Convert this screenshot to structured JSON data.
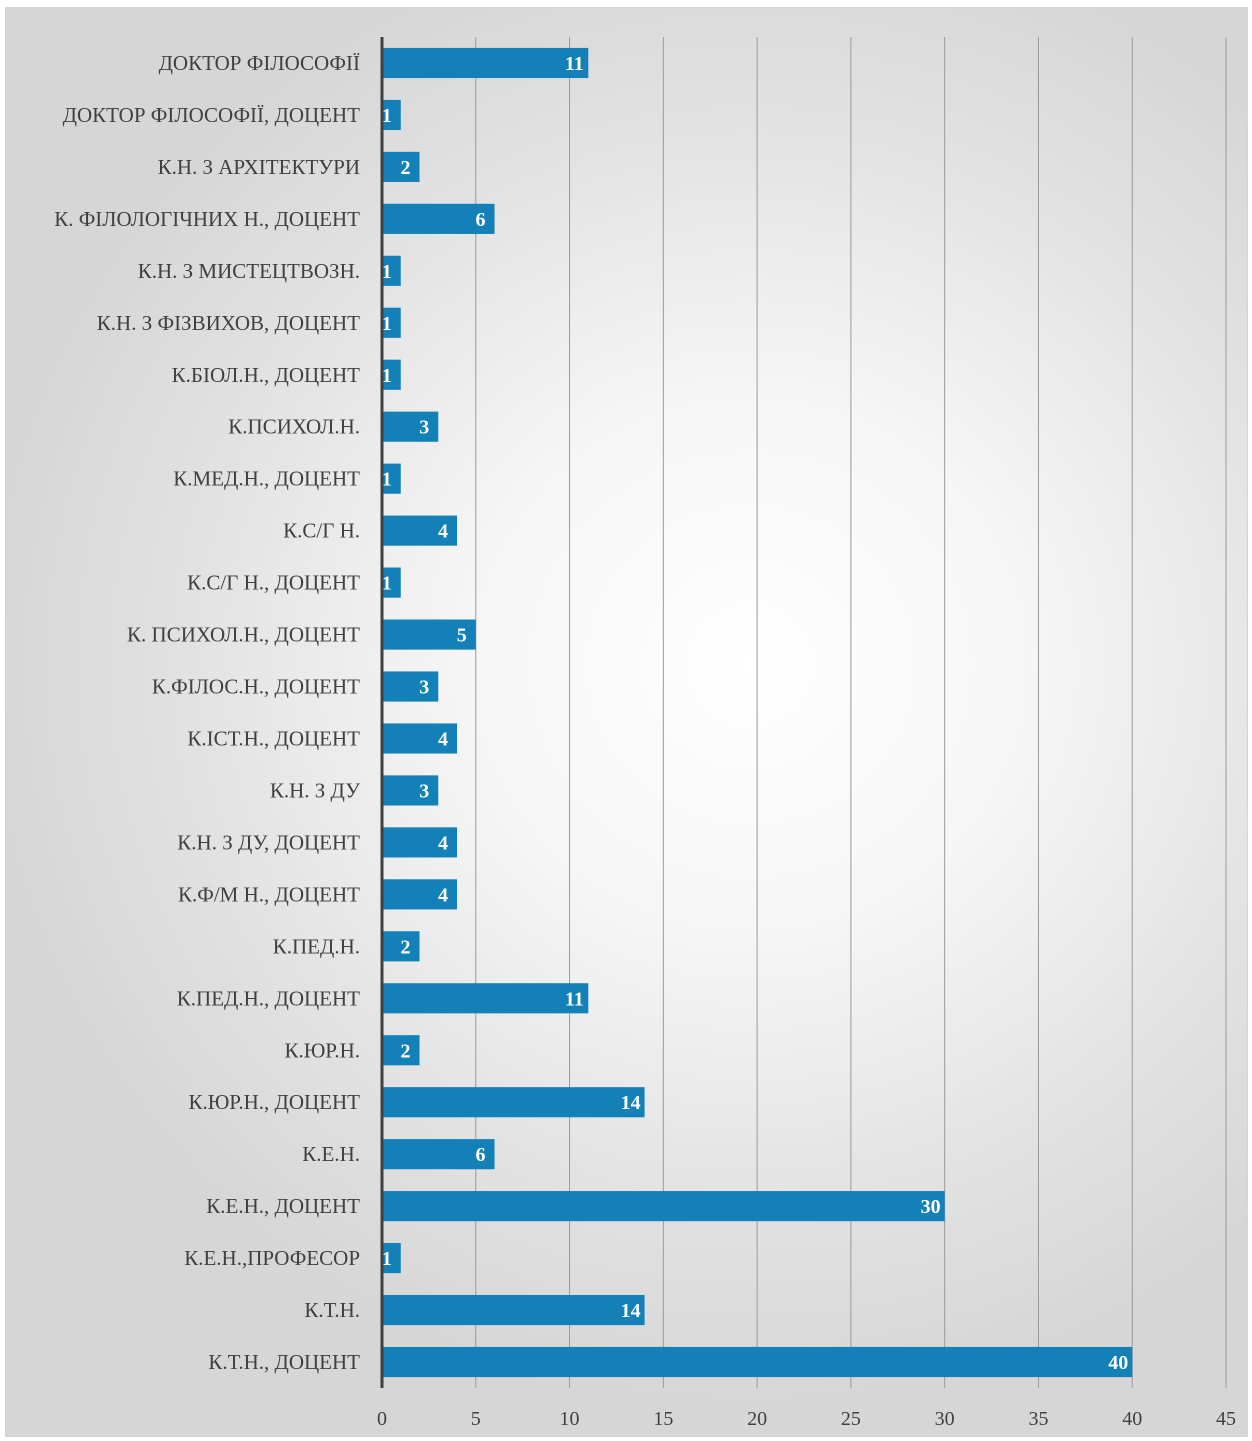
{
  "chart_data": {
    "type": "bar",
    "orientation": "horizontal",
    "title": "",
    "xlabel": "",
    "ylabel": "",
    "xlim": [
      0,
      45
    ],
    "x_ticks": [
      0,
      5,
      10,
      15,
      20,
      25,
      30,
      35,
      40,
      45
    ],
    "grid": true,
    "legend": "none",
    "bar_color": "#1380b8",
    "categories": [
      "ДОКТОР ФІЛОСОФІЇ",
      "ДОКТОР ФІЛОСОФІЇ, ДОЦЕНТ",
      "К.Н. З АРХІТЕКТУРИ",
      "К. ФІЛОЛОГІЧНИХ Н., ДОЦЕНТ",
      "К.Н. З МИСТЕЦТВОЗН.",
      "К.Н. З ФІЗВИХОВ, ДОЦЕНТ",
      "К.БІОЛ.Н., ДОЦЕНТ",
      "К.ПСИХОЛ.Н.",
      "К.МЕД.Н., ДОЦЕНТ",
      "К.С/Г Н.",
      "К.С/Г Н., ДОЦЕНТ",
      "К. ПСИХОЛ.Н., ДОЦЕНТ",
      "К.ФІЛОС.Н., ДОЦЕНТ",
      "К.ІСТ.Н., ДОЦЕНТ",
      "К.Н. З ДУ",
      "К.Н. З ДУ, ДОЦЕНТ",
      "К.Ф/М Н., ДОЦЕНТ",
      "К.ПЕД.Н.",
      "К.ПЕД.Н., ДОЦЕНТ",
      "К.ЮР.Н.",
      "К.ЮР.Н., ДОЦЕНТ",
      "К.Е.Н.",
      "К.Е.Н., ДОЦЕНТ",
      "К.Е.Н.,ПРОФЕСОР",
      "К.Т.Н.",
      "К.Т.Н., ДОЦЕНТ"
    ],
    "values": [
      11,
      1,
      2,
      6,
      1,
      1,
      1,
      3,
      1,
      4,
      1,
      5,
      3,
      4,
      3,
      4,
      4,
      2,
      11,
      2,
      14,
      6,
      30,
      1,
      14,
      40
    ]
  }
}
